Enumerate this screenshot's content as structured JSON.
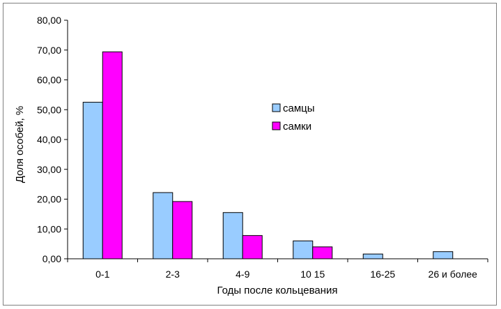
{
  "chart_data": {
    "type": "bar",
    "categories": [
      "0-1",
      "2-3",
      "4-9",
      "10 15",
      "16-25",
      "26 и более"
    ],
    "series": [
      {
        "name": "самцы",
        "color": "#99ccff",
        "values": [
          52.5,
          22.2,
          15.5,
          6.0,
          1.6,
          2.4
        ]
      },
      {
        "name": "самки",
        "color": "#ff00ff",
        "values": [
          69.4,
          19.2,
          7.8,
          4.0,
          0.0,
          0.0
        ]
      }
    ],
    "xlabel": "Годы после кольцевания",
    "ylabel": "Доля особей, %",
    "ylim": [
      0,
      80
    ],
    "yticks": [
      "0,00",
      "10,00",
      "20,00",
      "30,00",
      "40,00",
      "50,00",
      "60,00",
      "70,00",
      "80,00"
    ],
    "grid": false,
    "legend_position": "center-right"
  }
}
